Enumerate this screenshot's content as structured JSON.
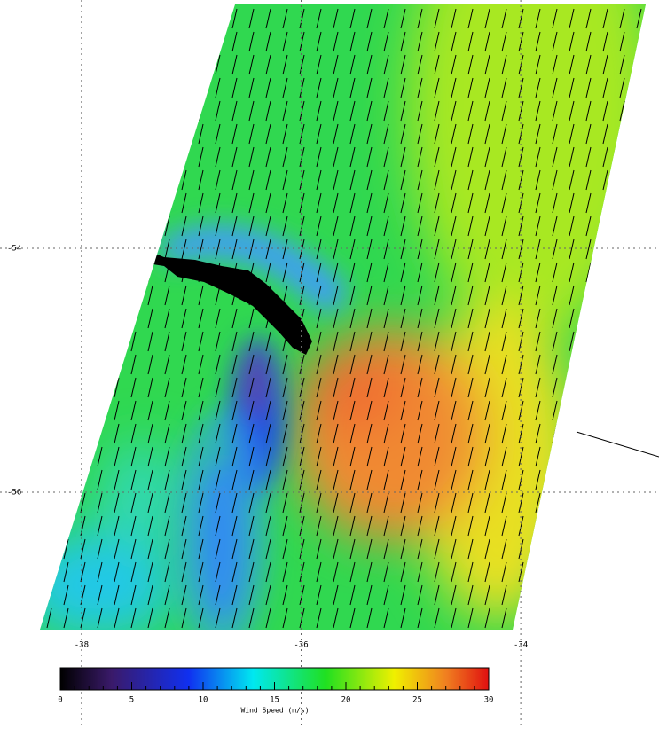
{
  "chart_data": {
    "type": "map",
    "xlim": [
      -38.5,
      -33.5
    ],
    "xticks": [
      -38,
      -36,
      -34
    ],
    "ylim": [
      -57,
      -52
    ],
    "yticks": [
      -54,
      -56
    ],
    "colorbar": {
      "label": "Wind Speed (m/s)",
      "range": [
        0,
        30
      ],
      "ticks": [
        0,
        5,
        10,
        15,
        20,
        25,
        30
      ]
    }
  }
}
